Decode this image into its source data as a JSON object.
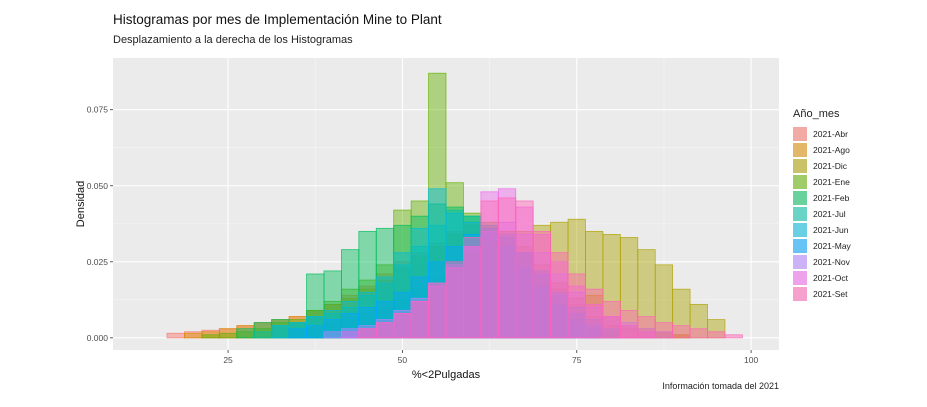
{
  "title": "Histogramas por mes de Implementación Mine to Plant",
  "subtitle": "Desplazamiento a la derecha de los Histogramas",
  "caption": "Información tomada del 2021",
  "chart_data": {
    "type": "histogram",
    "title": "Histogramas por mes de Implementación Mine to Plant",
    "subtitle": "Desplazamiento a la derecha de los Histogramas",
    "xlabel": "%<2Pulgadas",
    "ylabel": "Densidad",
    "xlim": [
      8.5,
      104
    ],
    "ylim": [
      -0.004,
      0.092
    ],
    "x_ticks": [
      25,
      50,
      75,
      100
    ],
    "x_tick_labels": [
      "25",
      "50",
      "75",
      "100"
    ],
    "y_ticks": [
      0,
      0.025,
      0.05,
      0.075
    ],
    "y_tick_labels": [
      "0.000",
      "0.025",
      "0.050",
      "0.075"
    ],
    "bin_width": 2.5,
    "grid": true,
    "legend_title": "Año_mes",
    "legend_position": "right",
    "series": [
      {
        "name": "2021-Abr",
        "color": "#F8766D",
        "x": [
          17.5,
          20,
          22.5,
          25,
          27.5,
          30,
          32.5,
          35,
          37.5,
          40,
          42.5,
          45,
          47.5,
          50,
          52.5,
          55,
          57.5,
          60,
          62.5,
          65,
          67.5,
          70,
          72.5,
          75,
          77.5,
          80,
          82.5,
          85,
          87.5,
          90
        ],
        "y": [
          0.0015,
          0.002,
          0.0025,
          0.003,
          0.004,
          0.005,
          0.006,
          0.007,
          0.009,
          0.011,
          0.014,
          0.017,
          0.021,
          0.025,
          0.028,
          0.031,
          0.035,
          0.038,
          0.036,
          0.033,
          0.028,
          0.022,
          0.016,
          0.011,
          0.007,
          0.004,
          0.003,
          0.002,
          0.0015,
          0.001
        ]
      },
      {
        "name": "2021-Ago",
        "color": "#DB8E00",
        "x": [
          20,
          22.5,
          25,
          27.5,
          30,
          32.5,
          35,
          37.5,
          40,
          42.5,
          45,
          47.5,
          50,
          52.5,
          55,
          57.5,
          60,
          62.5,
          65,
          67.5,
          70,
          72.5,
          75,
          77.5,
          80,
          82.5,
          85,
          87.5,
          90
        ],
        "y": [
          0.0015,
          0.002,
          0.003,
          0.004,
          0.005,
          0.006,
          0.007,
          0.009,
          0.011,
          0.013,
          0.016,
          0.019,
          0.023,
          0.027,
          0.03,
          0.034,
          0.037,
          0.037,
          0.035,
          0.03,
          0.024,
          0.018,
          0.013,
          0.014,
          0.007,
          0.004,
          0.003,
          0.002,
          0.001
        ]
      },
      {
        "name": "2021-Dic",
        "color": "#AEA200",
        "x": [
          35,
          37.5,
          40,
          42.5,
          45,
          47.5,
          50,
          52.5,
          55,
          57.5,
          60,
          62.5,
          65,
          67.5,
          70,
          72.5,
          75,
          77.5,
          80,
          82.5,
          85,
          87.5,
          90,
          92.5,
          95
        ],
        "y": [
          0.002,
          0.003,
          0.005,
          0.006,
          0.008,
          0.01,
          0.013,
          0.016,
          0.02,
          0.024,
          0.028,
          0.032,
          0.035,
          0.035,
          0.037,
          0.038,
          0.039,
          0.035,
          0.034,
          0.033,
          0.029,
          0.024,
          0.016,
          0.011,
          0.006
        ]
      },
      {
        "name": "2021-Ene",
        "color": "#64B200",
        "x": [
          22.5,
          25,
          27.5,
          30,
          32.5,
          35,
          37.5,
          40,
          42.5,
          45,
          47.5,
          50,
          52.5,
          55,
          57.5,
          60,
          62.5,
          65,
          67.5,
          70,
          72.5,
          75,
          77.5,
          80
        ],
        "y": [
          0.001,
          0.0015,
          0.002,
          0.003,
          0.005,
          0.006,
          0.009,
          0.012,
          0.016,
          0.019,
          0.024,
          0.042,
          0.045,
          0.087,
          0.051,
          0.041,
          0.038,
          0.033,
          0.027,
          0.02,
          0.013,
          0.008,
          0.004,
          0.002
        ]
      },
      {
        "name": "2021-Feb",
        "color": "#00BD5C",
        "x": [
          27.5,
          30,
          32.5,
          35,
          37.5,
          40,
          42.5,
          45,
          47.5,
          50,
          52.5,
          55,
          57.5,
          60,
          62.5,
          65,
          67.5,
          70,
          72.5,
          75,
          77.5
        ],
        "y": [
          0.003,
          0.005,
          0.006,
          0.005,
          0.021,
          0.022,
          0.029,
          0.035,
          0.036,
          0.037,
          0.04,
          0.044,
          0.043,
          0.04,
          0.035,
          0.03,
          0.023,
          0.017,
          0.011,
          0.006,
          0.003
        ]
      },
      {
        "name": "2021-Jul",
        "color": "#00C1A7",
        "x": [
          30,
          32.5,
          35,
          37.5,
          40,
          42.5,
          45,
          47.5,
          50,
          52.5,
          55,
          57.5,
          60,
          62.5,
          65,
          67.5,
          70,
          72.5,
          75,
          77.5,
          80
        ],
        "y": [
          0.002,
          0.004,
          0.005,
          0.007,
          0.008,
          0.01,
          0.014,
          0.018,
          0.024,
          0.03,
          0.037,
          0.042,
          0.04,
          0.037,
          0.034,
          0.028,
          0.022,
          0.015,
          0.01,
          0.006,
          0.003
        ]
      },
      {
        "name": "2021-Jun",
        "color": "#00BADE",
        "x": [
          32.5,
          35,
          37.5,
          40,
          42.5,
          45,
          47.5,
          50,
          52.5,
          55,
          57.5,
          60,
          62.5,
          65,
          67.5,
          70,
          72.5,
          75
        ],
        "y": [
          0.004,
          0.005,
          0.007,
          0.009,
          0.012,
          0.015,
          0.02,
          0.028,
          0.036,
          0.049,
          0.041,
          0.038,
          0.035,
          0.03,
          0.023,
          0.016,
          0.01,
          0.005
        ]
      },
      {
        "name": "2021-May",
        "color": "#00A6FF",
        "x": [
          35,
          37.5,
          40,
          42.5,
          45,
          47.5,
          50,
          52.5,
          55,
          57.5,
          60,
          62.5,
          65,
          67.5,
          70,
          72.5,
          75,
          77.5
        ],
        "y": [
          0.003,
          0.004,
          0.006,
          0.008,
          0.01,
          0.012,
          0.015,
          0.02,
          0.025,
          0.03,
          0.034,
          0.036,
          0.033,
          0.028,
          0.021,
          0.014,
          0.008,
          0.004
        ]
      },
      {
        "name": "2021-Nov",
        "color": "#B385FF",
        "x": [
          40,
          42.5,
          45,
          47.5,
          50,
          52.5,
          55,
          57.5,
          60,
          62.5,
          65,
          67.5,
          70,
          72.5,
          75,
          77.5,
          80,
          82.5,
          85,
          87.5
        ],
        "y": [
          0.002,
          0.003,
          0.004,
          0.006,
          0.009,
          0.013,
          0.018,
          0.024,
          0.03,
          0.035,
          0.038,
          0.034,
          0.028,
          0.021,
          0.015,
          0.01,
          0.007,
          0.005,
          0.003,
          0.002
        ]
      },
      {
        "name": "2021-Oct",
        "color": "#EF67EB",
        "x": [
          42.5,
          45,
          47.5,
          50,
          52.5,
          55,
          57.5,
          60,
          62.5,
          65,
          67.5,
          70,
          72.5,
          75,
          77.5,
          80,
          82.5,
          85
        ],
        "y": [
          0.002,
          0.003,
          0.005,
          0.008,
          0.012,
          0.017,
          0.023,
          0.03,
          0.048,
          0.049,
          0.043,
          0.034,
          0.025,
          0.017,
          0.011,
          0.007,
          0.004,
          0.002
        ]
      },
      {
        "name": "2021-Set",
        "color": "#FF63B6",
        "x": [
          45,
          47.5,
          50,
          52.5,
          55,
          57.5,
          60,
          62.5,
          65,
          67.5,
          70,
          72.5,
          75,
          77.5,
          80,
          82.5,
          85,
          87.5,
          90,
          92.5,
          95,
          97.5
        ],
        "y": [
          0.003,
          0.005,
          0.008,
          0.012,
          0.018,
          0.025,
          0.033,
          0.045,
          0.046,
          0.045,
          0.035,
          0.028,
          0.021,
          0.016,
          0.012,
          0.009,
          0.007,
          0.005,
          0.004,
          0.003,
          0.002,
          0.001
        ]
      }
    ]
  }
}
